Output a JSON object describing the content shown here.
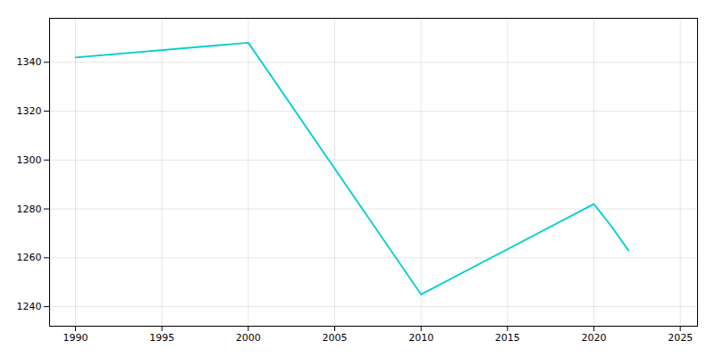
{
  "chart_data": {
    "type": "line",
    "x": [
      1990,
      2000,
      2010,
      2020,
      2021,
      2022
    ],
    "values": [
      1342,
      1348,
      1245,
      1282,
      1273,
      1263
    ],
    "color": "#00CED1",
    "xlim": [
      1988.5,
      2026
    ],
    "ylim": [
      1232,
      1358
    ],
    "xticks": [
      1990,
      1995,
      2000,
      2005,
      2010,
      2015,
      2020,
      2025
    ],
    "yticks": [
      1240,
      1260,
      1280,
      1300,
      1320,
      1340
    ],
    "grid": true
  }
}
